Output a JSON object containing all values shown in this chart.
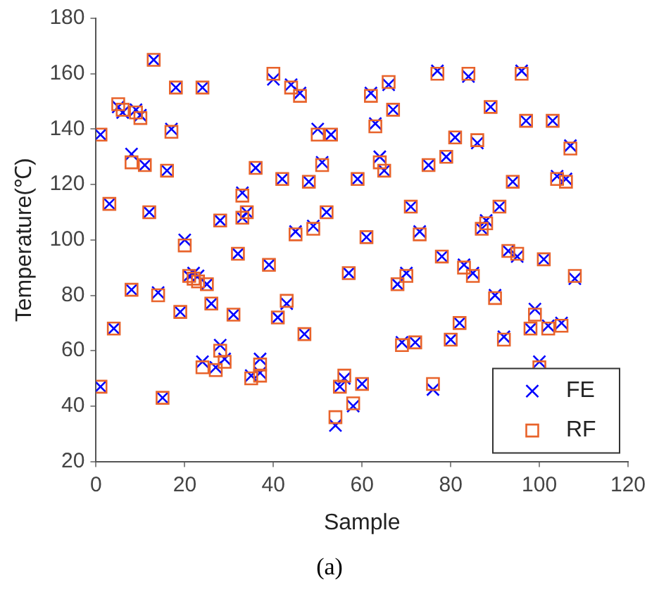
{
  "chart_data": {
    "type": "scatter",
    "xlabel": "Sample",
    "ylabel": "Temperature(℃)",
    "xlim": [
      0,
      120
    ],
    "xticks": [
      0,
      20,
      40,
      60,
      80,
      100,
      120
    ],
    "ylim": [
      20,
      180
    ],
    "yticks": [
      20,
      40,
      60,
      80,
      100,
      120,
      140,
      160,
      180
    ],
    "grid": false,
    "legend": "bottom right",
    "annotations": [
      "(a)"
    ],
    "x": [
      1,
      1,
      3,
      4,
      5,
      6,
      8,
      8,
      9,
      10,
      11,
      12,
      13,
      14,
      15,
      16,
      17,
      18,
      19,
      20,
      21,
      22,
      23,
      24,
      24,
      25,
      26,
      27,
      28,
      28,
      29,
      31,
      32,
      33,
      33,
      34,
      35,
      36,
      37,
      37,
      39,
      40,
      41,
      42,
      43,
      44,
      45,
      46,
      47,
      48,
      49,
      50,
      51,
      52,
      53,
      54,
      55,
      56,
      57,
      58,
      59,
      60,
      61,
      62,
      63,
      64,
      65,
      66,
      67,
      68,
      69,
      70,
      71,
      72,
      73,
      75,
      76,
      77,
      78,
      79,
      80,
      81,
      82,
      83,
      84,
      85,
      86,
      87,
      88,
      89,
      90,
      91,
      92,
      93,
      94,
      95,
      96,
      97,
      98,
      99,
      100,
      101,
      102,
      103,
      104,
      105,
      106,
      107,
      108
    ],
    "series": [
      {
        "name": "FE",
        "color": "#0000ff",
        "marker": "cross",
        "values": [
          47,
          138,
          113,
          68,
          148,
          146,
          82,
          131,
          147,
          145,
          127,
          110,
          165,
          81,
          43,
          125,
          140,
          155,
          74,
          100,
          87,
          88,
          87,
          155,
          56,
          84,
          77,
          54,
          62,
          107,
          57,
          73,
          95,
          117,
          108,
          110,
          51,
          126,
          57,
          52,
          91,
          158,
          72,
          122,
          77,
          156,
          103,
          153,
          66,
          121,
          105,
          140,
          128,
          110,
          138,
          33,
          47,
          50,
          88,
          40,
          122,
          48,
          101,
          153,
          142,
          130,
          125,
          156,
          147,
          84,
          63,
          88,
          112,
          63,
          103,
          127,
          46,
          161,
          94,
          130,
          64,
          137,
          70,
          91,
          159,
          88,
          135,
          104,
          107,
          148,
          80,
          112,
          65,
          96,
          121,
          94,
          161,
          143,
          68,
          75,
          56,
          93,
          69,
          143,
          123,
          70,
          122,
          134,
          86
        ]
      },
      {
        "name": "RF",
        "color": "#e8632b",
        "marker": "square",
        "values": [
          47,
          138,
          113,
          68,
          149,
          147,
          82,
          128,
          146,
          144,
          127,
          110,
          165,
          80,
          43,
          125,
          139,
          155,
          74,
          98,
          87,
          86,
          85,
          155,
          54,
          84,
          77,
          53,
          60,
          107,
          56,
          73,
          95,
          116,
          108,
          110,
          50,
          126,
          55,
          51,
          91,
          160,
          72,
          122,
          78,
          155,
          102,
          152,
          66,
          121,
          104,
          138,
          127,
          110,
          138,
          36,
          47,
          51,
          88,
          41,
          122,
          48,
          101,
          152,
          141,
          128,
          125,
          157,
          147,
          84,
          62,
          87,
          112,
          63,
          102,
          127,
          48,
          160,
          94,
          130,
          64,
          137,
          70,
          90,
          160,
          87,
          136,
          104,
          106,
          148,
          79,
          112,
          64,
          96,
          121,
          95,
          160,
          143,
          68,
          73,
          54,
          93,
          68,
          143,
          122,
          69,
          121,
          133,
          87
        ]
      }
    ]
  }
}
